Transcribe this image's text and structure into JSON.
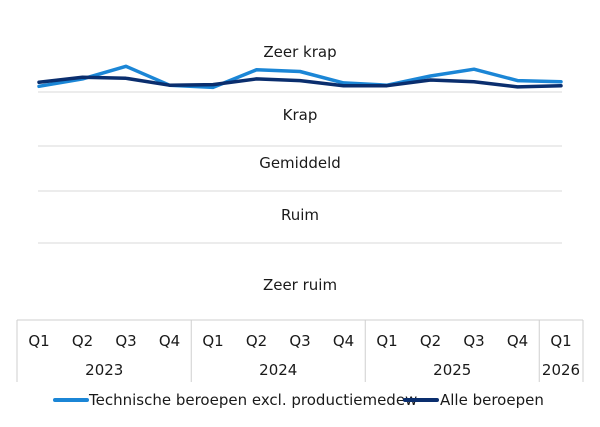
{
  "chart_data": {
    "type": "line",
    "y_categories": [
      "Zeer ruim",
      "Ruim",
      "Gemiddeld",
      "Krap",
      "Zeer krap"
    ],
    "x_quarters": [
      "Q1",
      "Q2",
      "Q3",
      "Q4",
      "Q1",
      "Q2",
      "Q3",
      "Q4",
      "Q1",
      "Q2",
      "Q3",
      "Q4",
      "Q1"
    ],
    "x_years": [
      {
        "label": "2023",
        "count": 4
      },
      {
        "label": "2024",
        "count": 4
      },
      {
        "label": "2025",
        "count": 4
      },
      {
        "label": "2026",
        "count": 1
      }
    ],
    "series": [
      {
        "name": "Technische beroepen excl. productiemedew",
        "color": "#1b86d6",
        "values": [
          4.1,
          4.23,
          4.45,
          4.12,
          4.08,
          4.39,
          4.36,
          4.16,
          4.12,
          4.28,
          4.4,
          4.2,
          4.18
        ]
      },
      {
        "name": "Alle beroepen",
        "color": "#0a2e6e",
        "values": [
          4.17,
          4.26,
          4.24,
          4.12,
          4.13,
          4.23,
          4.2,
          4.11,
          4.11,
          4.21,
          4.18,
          4.09,
          4.11
        ]
      }
    ],
    "legend_position": "bottom",
    "grid": true
  }
}
